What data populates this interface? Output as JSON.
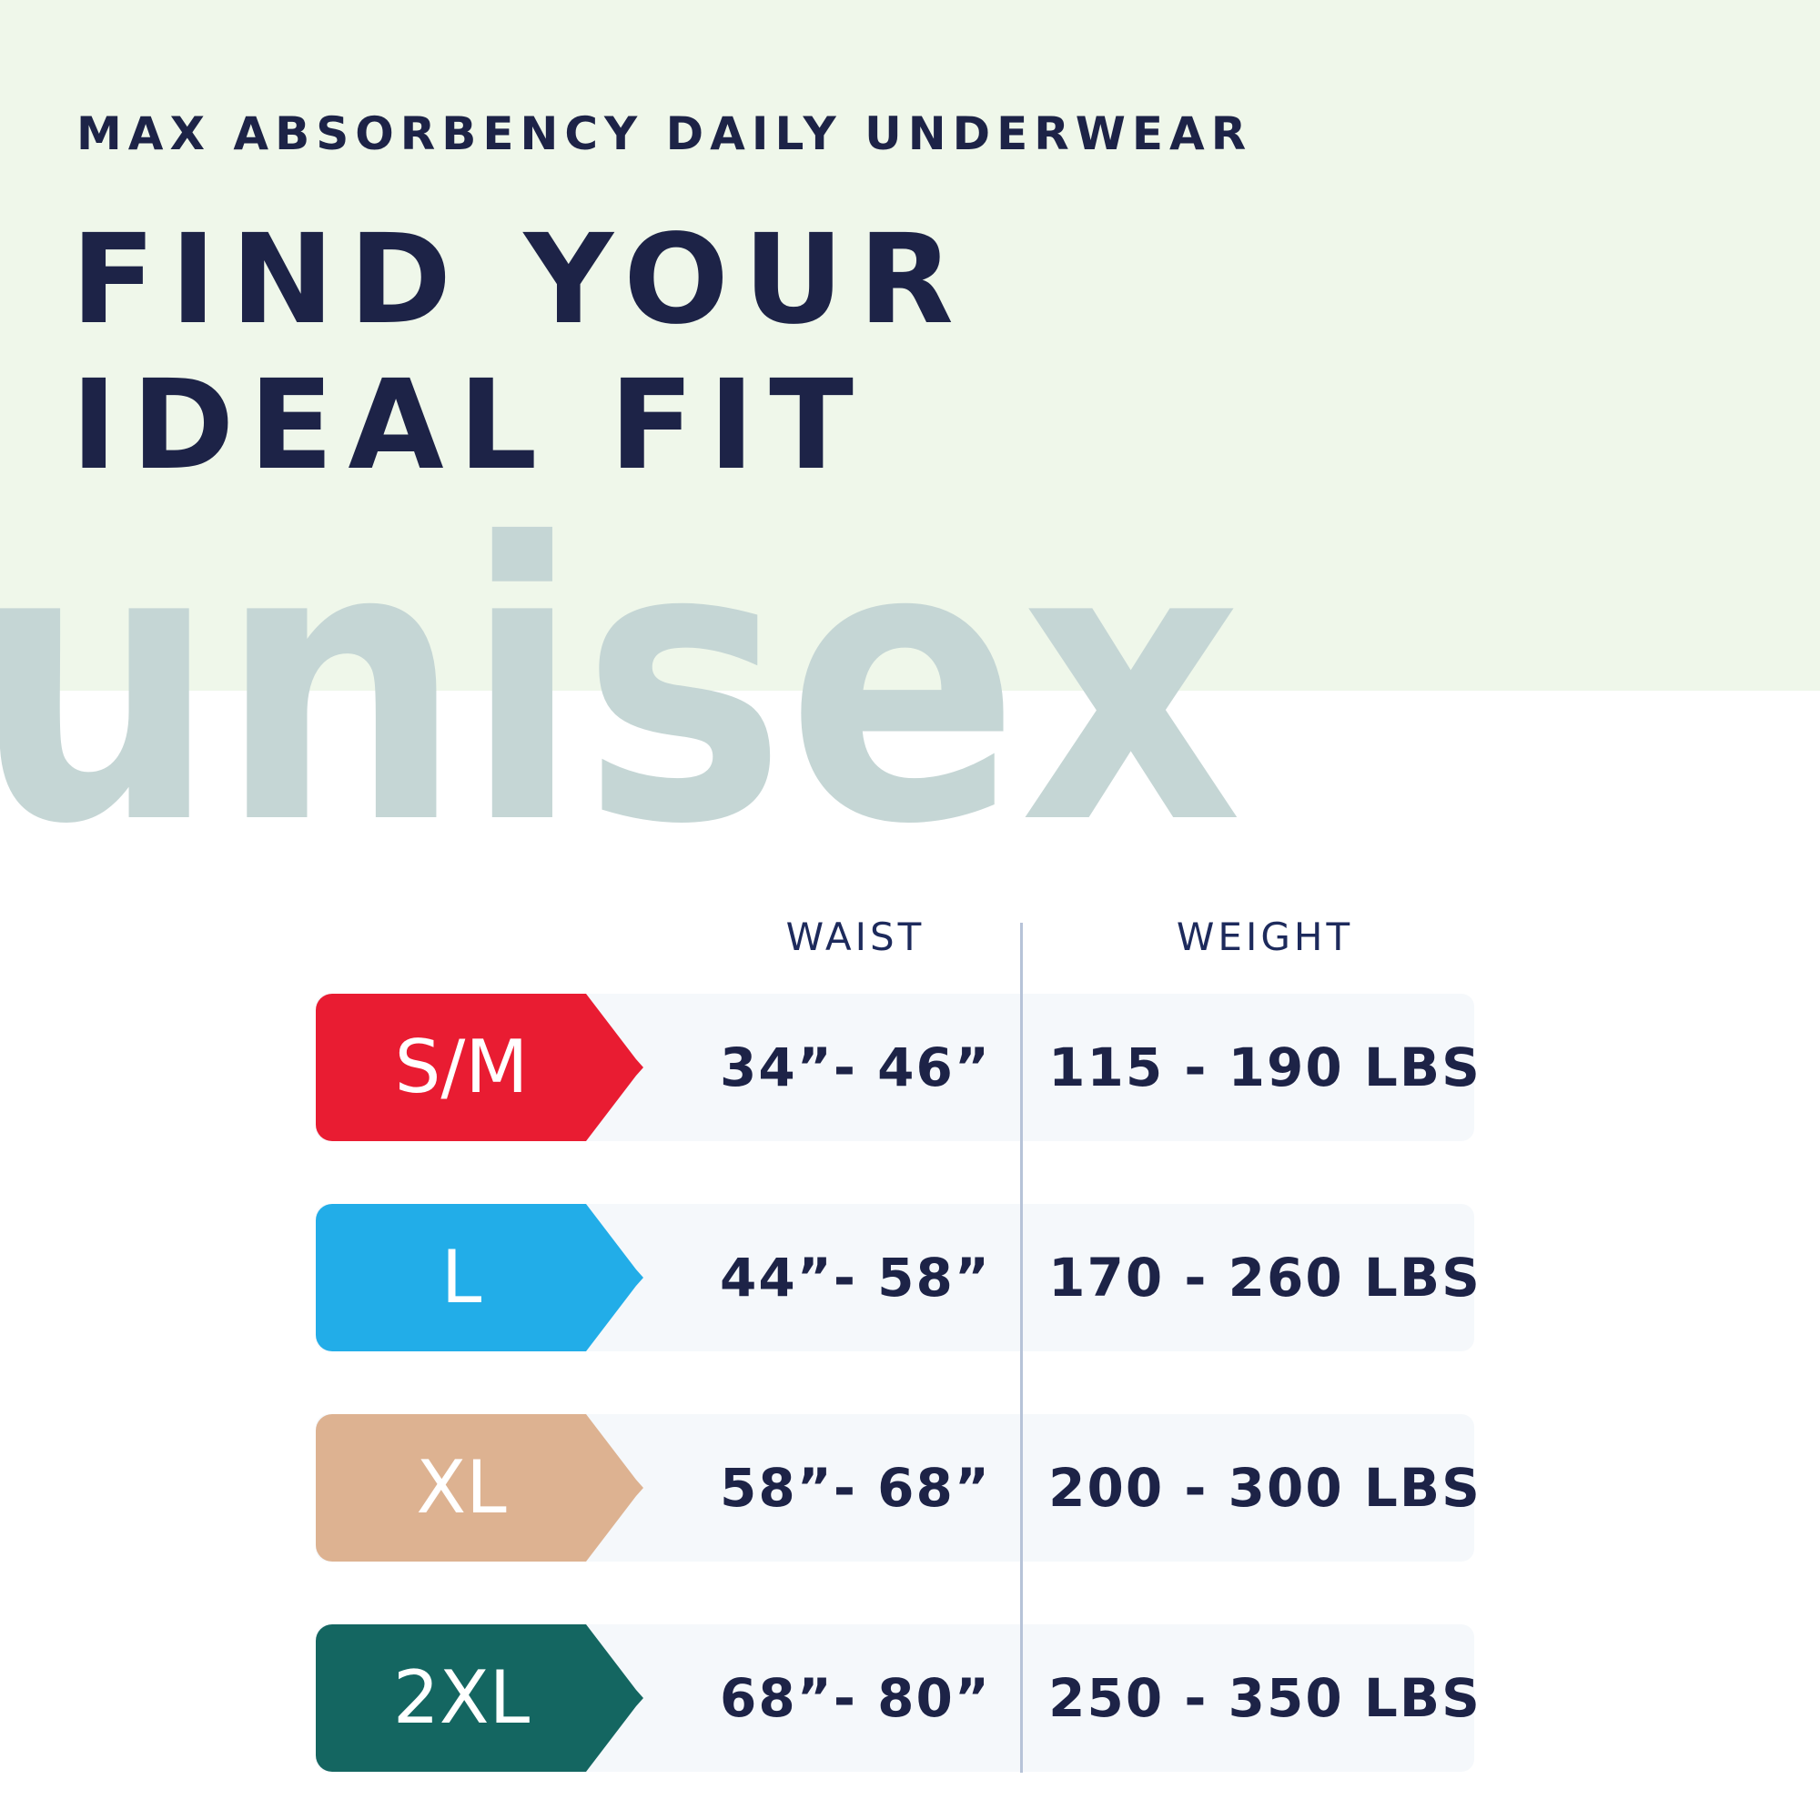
{
  "subtitle": "MAX ABSORBENCY DAILY UNDERWEAR",
  "title_line1": "FIND YOUR",
  "title_line2": "IDEAL FIT",
  "watermark": "unisex",
  "columns": {
    "waist": "WAIST",
    "weight": "WEIGHT"
  },
  "colors": {
    "navy": "#1d2347",
    "header_bg": "#eff7ea",
    "watermark": "#c5d6d5"
  },
  "sizes": [
    {
      "label": "S/M",
      "waist": "34”- 46”",
      "weight": "115 - 190 LBS",
      "color": "#e91c32"
    },
    {
      "label": "L",
      "waist": "44”- 58”",
      "weight": "170 - 260 LBS",
      "color": "#22ade8"
    },
    {
      "label": "XL",
      "waist": "58”- 68”",
      "weight": "200 - 300 LBS",
      "color": "#ddb291"
    },
    {
      "label": "2XL",
      "waist": "68”- 80”",
      "weight": "250 - 350 LBS",
      "color": "#146661"
    }
  ]
}
